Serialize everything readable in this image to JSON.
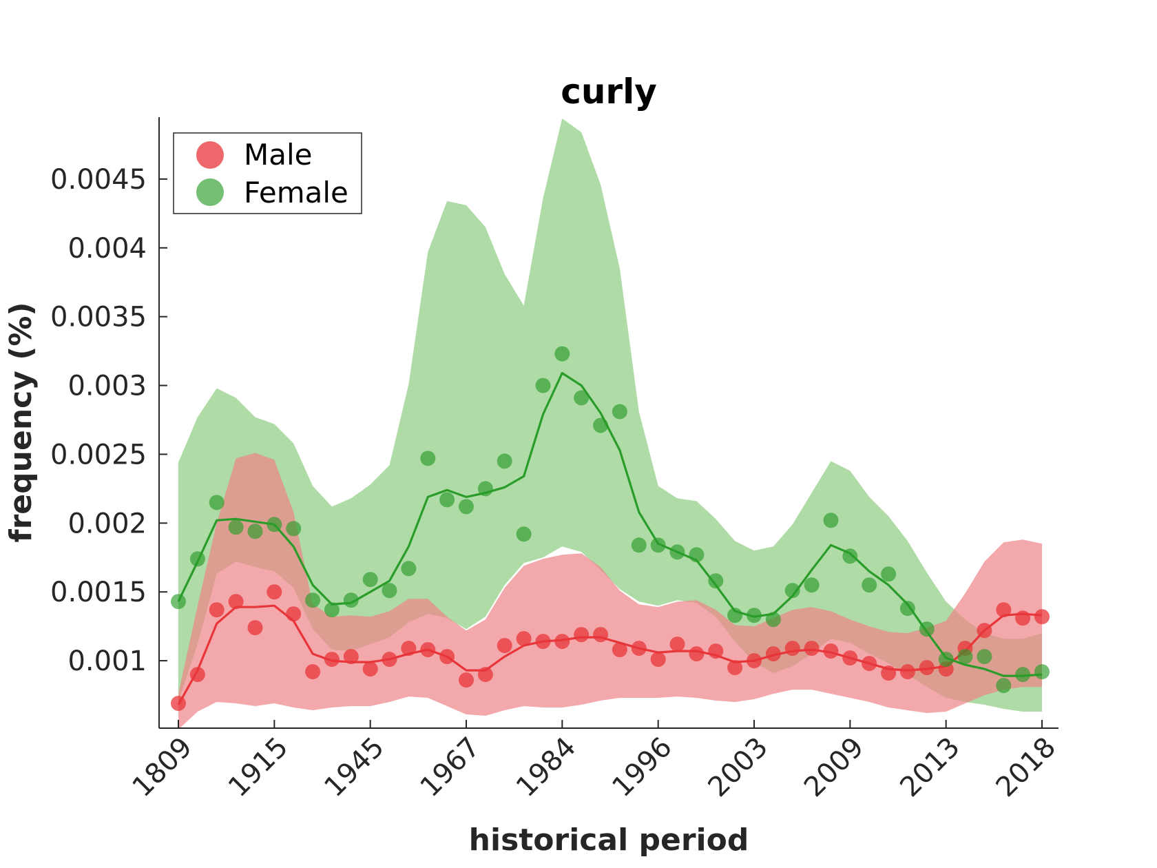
{
  "chart_data": {
    "type": "line",
    "title": "curly",
    "xlabel": "historical period",
    "ylabel": "frequency (%)",
    "x_tick_labels": [
      "1809",
      "1915",
      "1945",
      "1967",
      "1984",
      "1996",
      "2003",
      "2009",
      "2013",
      "2018"
    ],
    "y_ticks": [
      0.001,
      0.0015,
      0.002,
      0.0025,
      0.003,
      0.0035,
      0.004,
      0.0045
    ],
    "y_tick_labels": [
      "0.001",
      "0.0015",
      "0.002",
      "0.0025",
      "0.003",
      "0.0035",
      "0.004",
      "0.0045"
    ],
    "ylim": [
      0.00051,
      0.00495
    ],
    "n_points": 46,
    "legend": {
      "position": "top-left",
      "entries": [
        "Male",
        "Female"
      ]
    },
    "grid": false,
    "series": [
      {
        "name": "Male",
        "color": "#e8353a",
        "fill_color": "#ee8488",
        "points": [
          0.00069,
          0.0009,
          0.00137,
          0.00143,
          0.00124,
          0.0015,
          0.00134,
          0.00092,
          0.00101,
          0.00103,
          0.00094,
          0.00101,
          0.00109,
          0.00108,
          0.00103,
          0.00086,
          0.0009,
          0.00111,
          0.00116,
          0.00114,
          0.00114,
          0.00119,
          0.00119,
          0.00108,
          0.00109,
          0.00101,
          0.00112,
          0.00105,
          0.00107,
          0.00095,
          0.001,
          0.00105,
          0.00109,
          0.00109,
          0.00107,
          0.00102,
          0.00098,
          0.00091,
          0.00092,
          0.00095,
          0.00094,
          0.00109,
          0.00122,
          0.00137,
          0.00131,
          0.00132
        ],
        "line": [
          0.00068,
          0.00093,
          0.00127,
          0.00139,
          0.00139,
          0.0014,
          0.00129,
          0.00105,
          0.001,
          0.00099,
          0.00099,
          0.00101,
          0.00105,
          0.00108,
          0.00103,
          0.00093,
          0.00093,
          0.00103,
          0.00111,
          0.00114,
          0.00115,
          0.00117,
          0.00117,
          0.00113,
          0.00109,
          0.00106,
          0.00107,
          0.00107,
          0.00104,
          0.00099,
          0.001,
          0.00104,
          0.00107,
          0.00108,
          0.00106,
          0.00102,
          0.00098,
          0.00094,
          0.00093,
          0.00094,
          0.00096,
          0.00107,
          0.00122,
          0.00133,
          0.00134,
          0.00133
        ],
        "band_upper": [
          0.00076,
          0.0014,
          0.002,
          0.00247,
          0.00251,
          0.00246,
          0.00208,
          0.00141,
          0.00132,
          0.00133,
          0.00132,
          0.00136,
          0.00145,
          0.00145,
          0.00132,
          0.00122,
          0.0013,
          0.00153,
          0.00169,
          0.00174,
          0.00177,
          0.00178,
          0.00168,
          0.00151,
          0.00141,
          0.00139,
          0.00143,
          0.00144,
          0.00137,
          0.00126,
          0.00125,
          0.00131,
          0.00137,
          0.00139,
          0.00136,
          0.0013,
          0.00125,
          0.00121,
          0.0012,
          0.00124,
          0.00129,
          0.00149,
          0.00172,
          0.00186,
          0.00188,
          0.00185
        ],
        "band_lower": [
          0.0005,
          0.00063,
          0.0007,
          0.00069,
          0.00067,
          0.00069,
          0.00066,
          0.00064,
          0.00066,
          0.00067,
          0.00067,
          0.0007,
          0.00074,
          0.00073,
          0.00067,
          0.00061,
          0.0006,
          0.00064,
          0.00067,
          0.00066,
          0.00066,
          0.00068,
          0.00071,
          0.00073,
          0.00073,
          0.00073,
          0.00074,
          0.00073,
          0.00071,
          0.0007,
          0.00072,
          0.00076,
          0.00079,
          0.00079,
          0.00076,
          0.00073,
          0.0007,
          0.00066,
          0.00064,
          0.00062,
          0.00063,
          0.00069,
          0.00075,
          0.00079,
          0.00081,
          0.00081
        ]
      },
      {
        "name": "Female",
        "color": "#2a9c2a",
        "fill_color": "#a6d79c",
        "points": [
          0.00143,
          0.00174,
          0.00215,
          0.00197,
          0.00194,
          0.00199,
          0.00196,
          0.00144,
          0.00137,
          0.00144,
          0.00159,
          0.00151,
          0.00167,
          0.00247,
          0.00217,
          0.00212,
          0.00225,
          0.00245,
          0.00192,
          0.003,
          0.00323,
          0.00291,
          0.00271,
          0.00281,
          0.00184,
          0.00184,
          0.00179,
          0.00177,
          0.00158,
          0.00133,
          0.00133,
          0.0013,
          0.00151,
          0.00155,
          0.00202,
          0.00176,
          0.00155,
          0.00163,
          0.00138,
          0.00123,
          0.00101,
          0.00103,
          0.00103,
          0.00082,
          0.0009,
          0.00092
        ],
        "line": [
          0.00143,
          0.00172,
          0.00202,
          0.00203,
          0.00201,
          0.00199,
          0.00183,
          0.00155,
          0.00141,
          0.00142,
          0.0015,
          0.00158,
          0.00183,
          0.00219,
          0.00224,
          0.00219,
          0.00222,
          0.00226,
          0.00234,
          0.00279,
          0.00309,
          0.003,
          0.0028,
          0.00253,
          0.00208,
          0.00185,
          0.00179,
          0.00173,
          0.00155,
          0.00136,
          0.00132,
          0.00134,
          0.00147,
          0.00166,
          0.00184,
          0.00178,
          0.00165,
          0.00155,
          0.00141,
          0.00121,
          0.00102,
          0.00097,
          0.00094,
          0.00089,
          0.00089,
          0.0009
        ],
        "band_upper": [
          0.00244,
          0.00277,
          0.00298,
          0.00291,
          0.00277,
          0.00272,
          0.00258,
          0.00227,
          0.00212,
          0.00218,
          0.00228,
          0.00242,
          0.00301,
          0.00397,
          0.00434,
          0.00431,
          0.00415,
          0.00381,
          0.00358,
          0.00436,
          0.00494,
          0.00484,
          0.00446,
          0.00385,
          0.00281,
          0.00227,
          0.00218,
          0.00216,
          0.00203,
          0.00187,
          0.0018,
          0.00183,
          0.00199,
          0.00222,
          0.00245,
          0.00238,
          0.00219,
          0.00205,
          0.00187,
          0.00164,
          0.00143,
          0.0013,
          0.0012,
          0.00116,
          0.00116,
          0.0012
        ],
        "band_lower": [
          0.0007,
          0.00112,
          0.00163,
          0.00172,
          0.00168,
          0.00165,
          0.00153,
          0.00123,
          0.00108,
          0.00107,
          0.00112,
          0.00117,
          0.00128,
          0.00134,
          0.00131,
          0.00123,
          0.00132,
          0.00155,
          0.00171,
          0.00175,
          0.00183,
          0.00179,
          0.00166,
          0.00152,
          0.00143,
          0.0014,
          0.00144,
          0.00142,
          0.00132,
          0.00114,
          0.00099,
          0.00091,
          0.00096,
          0.00105,
          0.00116,
          0.00113,
          0.00105,
          0.00098,
          0.0009,
          0.00081,
          0.00073,
          0.0007,
          0.00068,
          0.00065,
          0.00063,
          0.00063
        ]
      }
    ]
  }
}
